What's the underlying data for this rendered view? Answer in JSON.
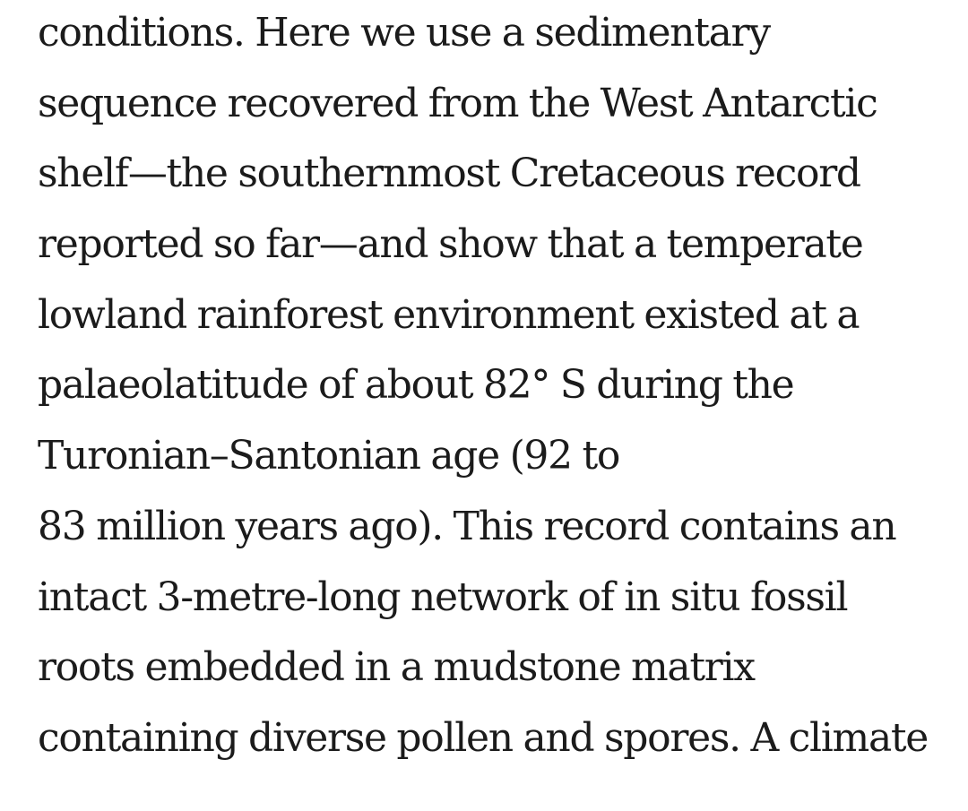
{
  "article": {
    "lines": [
      "conditions. Here we use a sedimentary",
      "sequence recovered from the West Antarctic",
      "shelf—the southernmost Cretaceous record",
      "reported so far—and show that a temperate",
      "lowland rainforest environment existed at a",
      "palaeolatitude of about 82° S during the",
      "Turonian–Santonian age (92 to",
      "83 million years ago). This record contains an",
      "intact 3-metre-long network of in situ fossil",
      "roots embedded in a mudstone matrix",
      "containing diverse pollen and spores. A climate"
    ]
  }
}
